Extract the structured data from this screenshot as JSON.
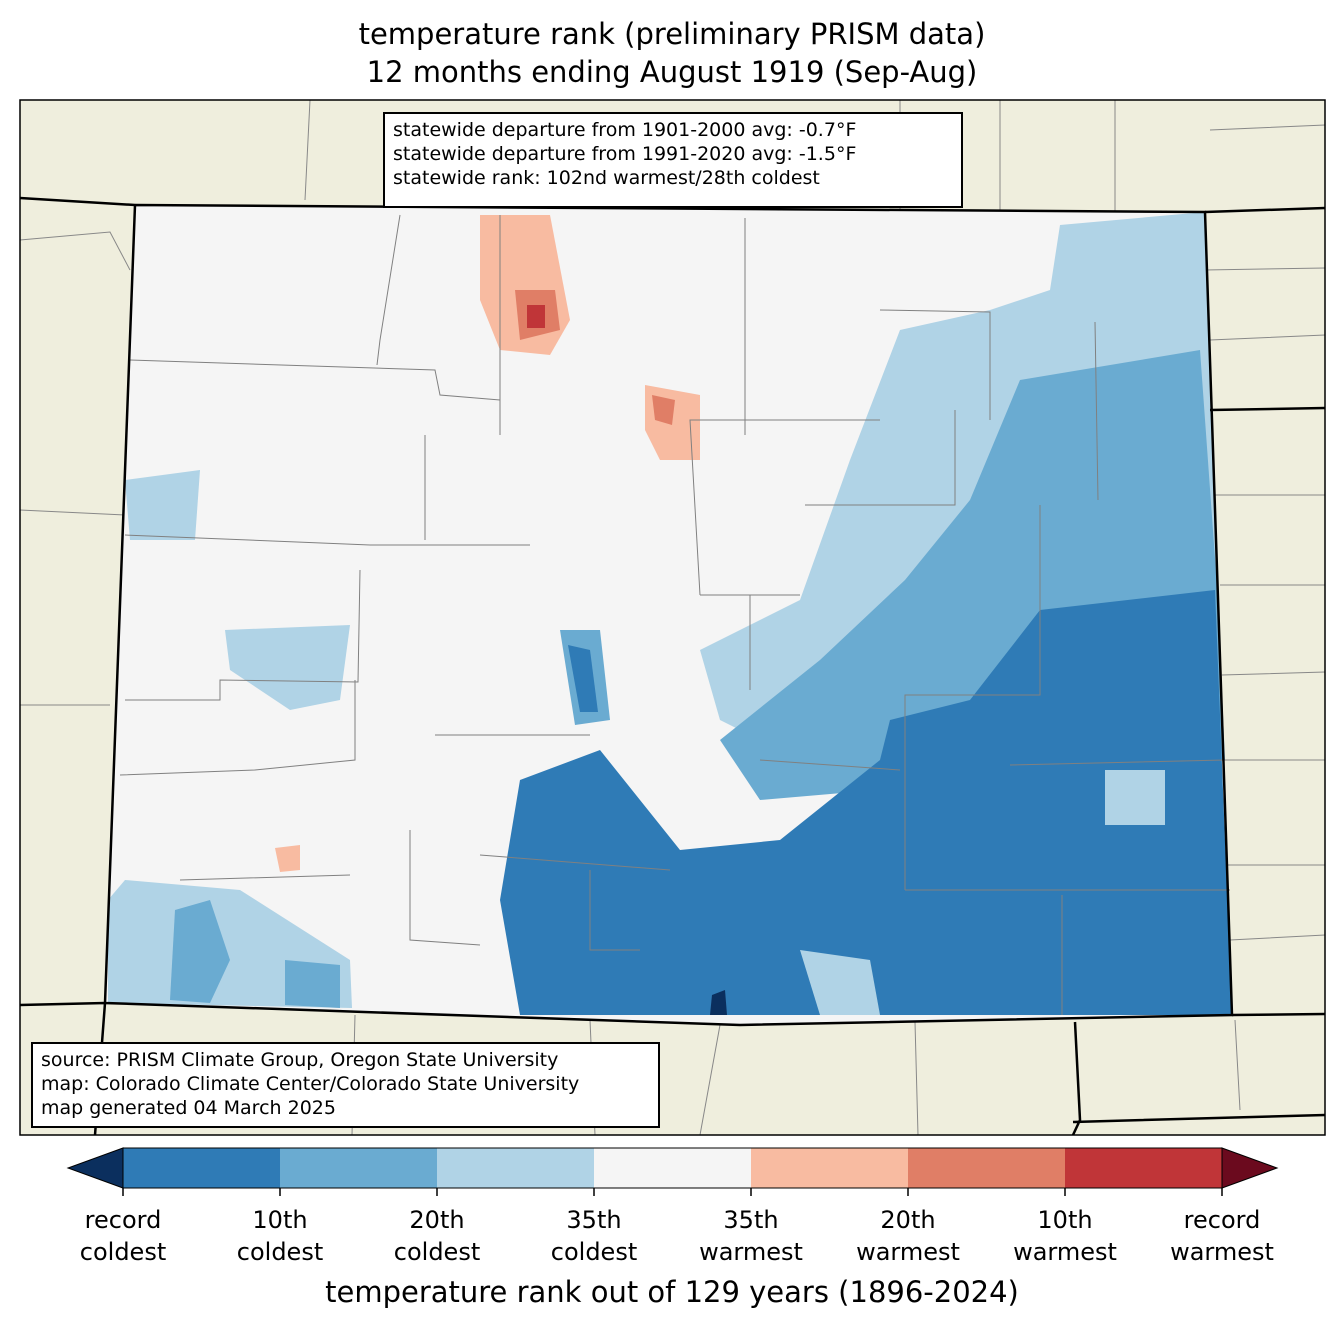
{
  "title": {
    "line1": "temperature rank (preliminary PRISM data)",
    "line2": "12 months ending August 1919 (Sep-Aug)"
  },
  "stats_box": {
    "line1": "statewide departure from 1901-2000 avg: -0.7°F",
    "line2": "statewide departure from 1991-2020 avg: -1.5°F",
    "line3": "statewide rank: 102nd warmest/28th coldest"
  },
  "source_box": {
    "line1": "source: PRISM Climate Group, Oregon State University",
    "line2": "map: Colorado Climate Center/Colorado State University",
    "line3": "map generated 04 March 2025"
  },
  "colors": {
    "land": "#efeedd",
    "record_coldest": "#0b2f5e",
    "coldest_10": "#2f7bb6",
    "coldest_20": "#6aabd1",
    "coldest_35": "#b0d3e6",
    "neutral": "#f5f5f5",
    "warmest_35": "#f8bba1",
    "warmest_20": "#e07e66",
    "warmest_10": "#c03538",
    "record_warmest": "#6b0a1e"
  },
  "colorbar": {
    "label": "temperature rank out of 129 years (1896-2024)",
    "ticks": [
      {
        "l1": "record",
        "l2": "coldest"
      },
      {
        "l1": "10th",
        "l2": "coldest"
      },
      {
        "l1": "20th",
        "l2": "coldest"
      },
      {
        "l1": "35th",
        "l2": "coldest"
      },
      {
        "l1": "35th",
        "l2": "warmest"
      },
      {
        "l1": "20th",
        "l2": "warmest"
      },
      {
        "l1": "10th",
        "l2": "warmest"
      },
      {
        "l1": "record",
        "l2": "warmest"
      }
    ]
  }
}
